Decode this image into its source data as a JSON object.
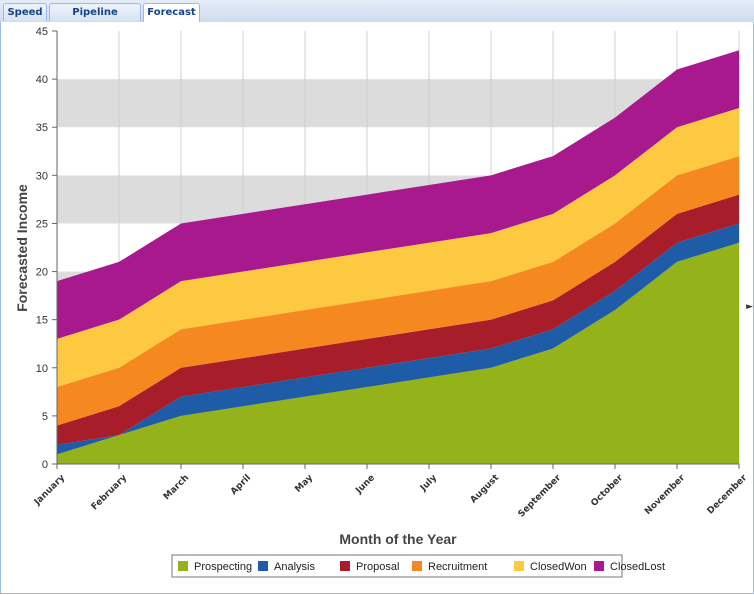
{
  "tabs": [
    {
      "label": "Speed",
      "active": false
    },
    {
      "label": "Pipeline Analysis",
      "active": false
    },
    {
      "label": "Forecast",
      "active": true
    }
  ],
  "chart_data": {
    "type": "area",
    "stacked": true,
    "xlabel": "Month of the Year",
    "ylabel": "Forecasted Income",
    "ylim": [
      0,
      45
    ],
    "yticks": [
      0,
      5,
      10,
      15,
      20,
      25,
      30,
      35,
      40,
      45
    ],
    "grid": true,
    "legend_position": "bottom",
    "categories": [
      "January",
      "February",
      "March",
      "April",
      "May",
      "June",
      "July",
      "August",
      "September",
      "October",
      "November",
      "December"
    ],
    "series": [
      {
        "name": "Prospecting",
        "color": "#94b31a",
        "values": [
          1,
          3,
          5,
          6,
          7,
          8,
          9,
          10,
          12,
          16,
          21,
          23
        ]
      },
      {
        "name": "Analysis",
        "color": "#1f5ca8",
        "values": [
          1,
          0,
          2,
          2,
          2,
          2,
          2,
          2,
          2,
          2,
          2,
          2
        ]
      },
      {
        "name": "Proposal",
        "color": "#a81d2a",
        "values": [
          2,
          3,
          3,
          3,
          3,
          3,
          3,
          3,
          3,
          3,
          3,
          3
        ]
      },
      {
        "name": "Recruitment",
        "color": "#f5891f",
        "values": [
          4,
          4,
          4,
          4,
          4,
          4,
          4,
          4,
          4,
          4,
          4,
          4
        ]
      },
      {
        "name": "ClosedWon",
        "color": "#fcc940",
        "values": [
          5,
          5,
          5,
          5,
          5,
          5,
          5,
          5,
          5,
          5,
          5,
          5
        ]
      },
      {
        "name": "ClosedLost",
        "color": "#a8198e",
        "values": [
          6,
          6,
          6,
          6,
          6,
          6,
          6,
          6,
          6,
          6,
          6,
          6
        ]
      }
    ]
  }
}
